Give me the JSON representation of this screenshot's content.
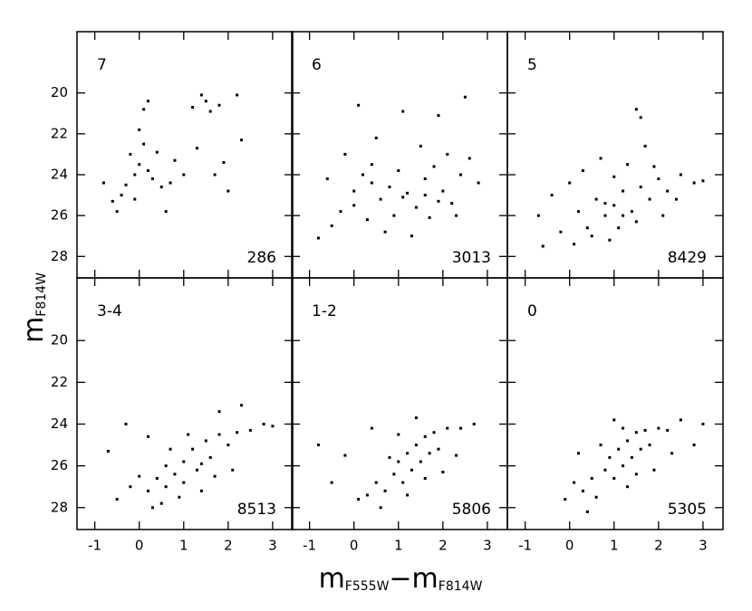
{
  "axis_labels": {
    "ylabel": {
      "main": "m",
      "sub": "F814W"
    },
    "xlabel": [
      {
        "main": "m",
        "sub": "F555W"
      },
      {
        "main": "−m",
        "sub": "F814W"
      }
    ]
  },
  "chart_data": [
    {
      "type": "scatter",
      "label": "7",
      "count": 286,
      "color": "#000000",
      "xlim": [
        -1.4,
        3.45
      ],
      "ylim": [
        29.05,
        17.0
      ],
      "xticks": [
        -1,
        0,
        1,
        2,
        3
      ],
      "yticks": [
        20,
        22,
        24,
        26,
        28
      ],
      "x": [
        -0.2,
        0.0,
        -0.1,
        0.1,
        0.2,
        -0.3,
        0.3,
        0.0,
        0.1,
        0.2,
        -0.4,
        -0.6,
        -0.8,
        -0.5,
        0.6,
        0.5,
        0.8,
        1.0,
        1.3,
        1.5,
        1.6,
        1.8,
        1.4,
        2.2,
        1.9,
        2.0,
        1.7,
        1.2,
        0.4,
        -0.1,
        0.7,
        2.3
      ],
      "y": [
        23.0,
        23.5,
        24.0,
        22.5,
        23.8,
        24.5,
        24.2,
        21.8,
        20.8,
        20.4,
        25.0,
        25.3,
        24.4,
        25.8,
        25.8,
        24.6,
        23.3,
        24.0,
        22.7,
        20.4,
        20.9,
        20.6,
        20.1,
        20.1,
        23.4,
        24.8,
        24.0,
        20.7,
        22.9,
        25.2,
        24.4,
        22.3
      ]
    },
    {
      "type": "scatter",
      "label": "6",
      "count": 3013,
      "color": "#000000",
      "xlim": [
        -1.4,
        3.45
      ],
      "ylim": [
        29.05,
        17.0
      ],
      "xticks": [
        -1,
        0,
        1,
        2,
        3
      ],
      "yticks": [
        20,
        22,
        24,
        26,
        28
      ],
      "x": [
        -0.5,
        -0.3,
        0.0,
        0.2,
        0.4,
        0.6,
        0.8,
        1.0,
        1.2,
        1.4,
        1.6,
        1.8,
        2.0,
        2.2,
        2.4,
        2.6,
        1.5,
        0.5,
        0.1,
        1.1,
        2.5,
        1.9,
        -0.6,
        -0.2,
        0.3,
        0.9,
        1.3,
        0.7,
        1.7,
        2.1,
        2.8,
        -0.8,
        0.0,
        1.1,
        1.6,
        0.4,
        1.9,
        2.3
      ],
      "y": [
        26.5,
        25.8,
        24.8,
        24.0,
        23.5,
        25.2,
        24.6,
        23.8,
        24.9,
        25.6,
        24.2,
        23.6,
        24.8,
        25.4,
        24.0,
        23.2,
        22.6,
        22.2,
        20.6,
        20.9,
        20.2,
        21.1,
        24.2,
        23.0,
        26.2,
        26.0,
        27.0,
        26.8,
        26.1,
        23.0,
        24.4,
        27.1,
        25.5,
        25.1,
        25.0,
        24.4,
        25.3,
        26.0
      ]
    },
    {
      "type": "scatter",
      "label": "5",
      "count": 8429,
      "color": "#000000",
      "xlim": [
        -1.4,
        3.45
      ],
      "ylim": [
        29.05,
        17.0
      ],
      "xticks": [
        -1,
        0,
        1,
        2,
        3
      ],
      "yticks": [
        20,
        22,
        24,
        26,
        28
      ],
      "x": [
        -0.7,
        -0.4,
        0.0,
        0.2,
        0.4,
        0.6,
        0.8,
        1.0,
        1.2,
        1.4,
        1.6,
        1.8,
        2.0,
        2.2,
        2.5,
        2.8,
        3.0,
        1.1,
        0.9,
        0.5,
        1.5,
        1.3,
        0.7,
        1.7,
        1.5,
        1.6,
        0.1,
        -0.2,
        2.1,
        1.0,
        0.3,
        1.9,
        2.4,
        -0.6,
        1.2,
        0.8
      ],
      "y": [
        26.0,
        25.0,
        24.4,
        25.8,
        26.6,
        25.2,
        26.0,
        25.5,
        24.8,
        25.8,
        24.6,
        25.2,
        24.2,
        24.8,
        24.0,
        24.4,
        24.3,
        26.6,
        27.2,
        27.0,
        26.3,
        23.5,
        23.2,
        22.6,
        20.8,
        21.2,
        27.4,
        26.8,
        26.0,
        24.1,
        23.8,
        23.6,
        25.2,
        27.5,
        26.0,
        25.4
      ]
    },
    {
      "type": "scatter",
      "label": "3-4",
      "count": 8513,
      "color": "#000000",
      "xlim": [
        -1.4,
        3.45
      ],
      "ylim": [
        29.05,
        17.0
      ],
      "xticks": [
        -1,
        0,
        1,
        2,
        3
      ],
      "yticks": [
        20,
        22,
        24,
        26,
        28
      ],
      "x": [
        -0.5,
        -0.2,
        0.0,
        0.2,
        0.4,
        0.5,
        0.6,
        0.8,
        1.0,
        1.0,
        1.2,
        1.3,
        1.5,
        1.6,
        1.8,
        2.0,
        2.2,
        2.5,
        2.8,
        3.0,
        1.4,
        0.9,
        1.7,
        2.3,
        -0.3,
        0.2,
        -0.7,
        1.8,
        0.7,
        1.1,
        2.1,
        0.3,
        1.4,
        0.6
      ],
      "y": [
        27.6,
        27.0,
        26.5,
        27.2,
        26.6,
        27.8,
        26.0,
        26.4,
        25.8,
        26.8,
        25.2,
        26.2,
        24.8,
        25.6,
        24.5,
        25.0,
        24.4,
        24.3,
        24.0,
        24.1,
        27.2,
        27.5,
        26.5,
        23.1,
        24.0,
        24.6,
        25.3,
        23.4,
        25.2,
        24.5,
        26.2,
        28.0,
        25.9,
        27.0
      ]
    },
    {
      "type": "scatter",
      "label": "1-2",
      "count": 5806,
      "color": "#000000",
      "xlim": [
        -1.4,
        3.45
      ],
      "ylim": [
        29.05,
        17.0
      ],
      "xticks": [
        -1,
        0,
        1,
        2,
        3
      ],
      "yticks": [
        20,
        22,
        24,
        26,
        28
      ],
      "x": [
        0.3,
        0.5,
        0.7,
        0.9,
        1.0,
        1.1,
        1.2,
        1.3,
        1.4,
        1.5,
        1.6,
        1.7,
        1.8,
        1.9,
        2.1,
        2.4,
        2.7,
        0.1,
        -0.5,
        -0.2,
        0.4,
        1.4,
        2.0,
        1.2,
        0.8,
        0.6,
        2.3,
        -0.8,
        1.6,
        1.0
      ],
      "y": [
        27.4,
        26.8,
        27.2,
        26.4,
        25.8,
        26.8,
        25.4,
        26.2,
        25.0,
        25.8,
        24.6,
        25.4,
        24.4,
        25.2,
        24.2,
        24.2,
        24.0,
        27.6,
        26.8,
        25.5,
        24.2,
        23.7,
        26.3,
        27.4,
        25.6,
        28.0,
        25.5,
        25.0,
        26.6,
        24.5
      ]
    },
    {
      "type": "scatter",
      "label": "0",
      "count": 5305,
      "color": "#000000",
      "xlim": [
        -1.4,
        3.45
      ],
      "ylim": [
        29.05,
        17.0
      ],
      "xticks": [
        -1,
        0,
        1,
        2,
        3
      ],
      "yticks": [
        20,
        22,
        24,
        26,
        28
      ],
      "x": [
        0.3,
        0.5,
        0.6,
        0.8,
        0.9,
        1.0,
        1.1,
        1.2,
        1.3,
        1.4,
        1.5,
        1.6,
        1.7,
        1.8,
        2.0,
        2.2,
        2.5,
        0.1,
        -0.1,
        0.2,
        1.0,
        1.9,
        1.3,
        0.7,
        2.3,
        3.0,
        0.4,
        1.5,
        2.8,
        1.2
      ],
      "y": [
        27.2,
        26.6,
        27.5,
        26.2,
        25.6,
        26.6,
        25.2,
        26.0,
        24.8,
        25.6,
        24.4,
        25.2,
        24.3,
        25.0,
        24.2,
        24.3,
        23.8,
        26.8,
        27.6,
        25.4,
        23.8,
        26.2,
        27.0,
        25.0,
        25.4,
        24.0,
        28.2,
        26.4,
        25.0,
        24.2
      ]
    }
  ]
}
